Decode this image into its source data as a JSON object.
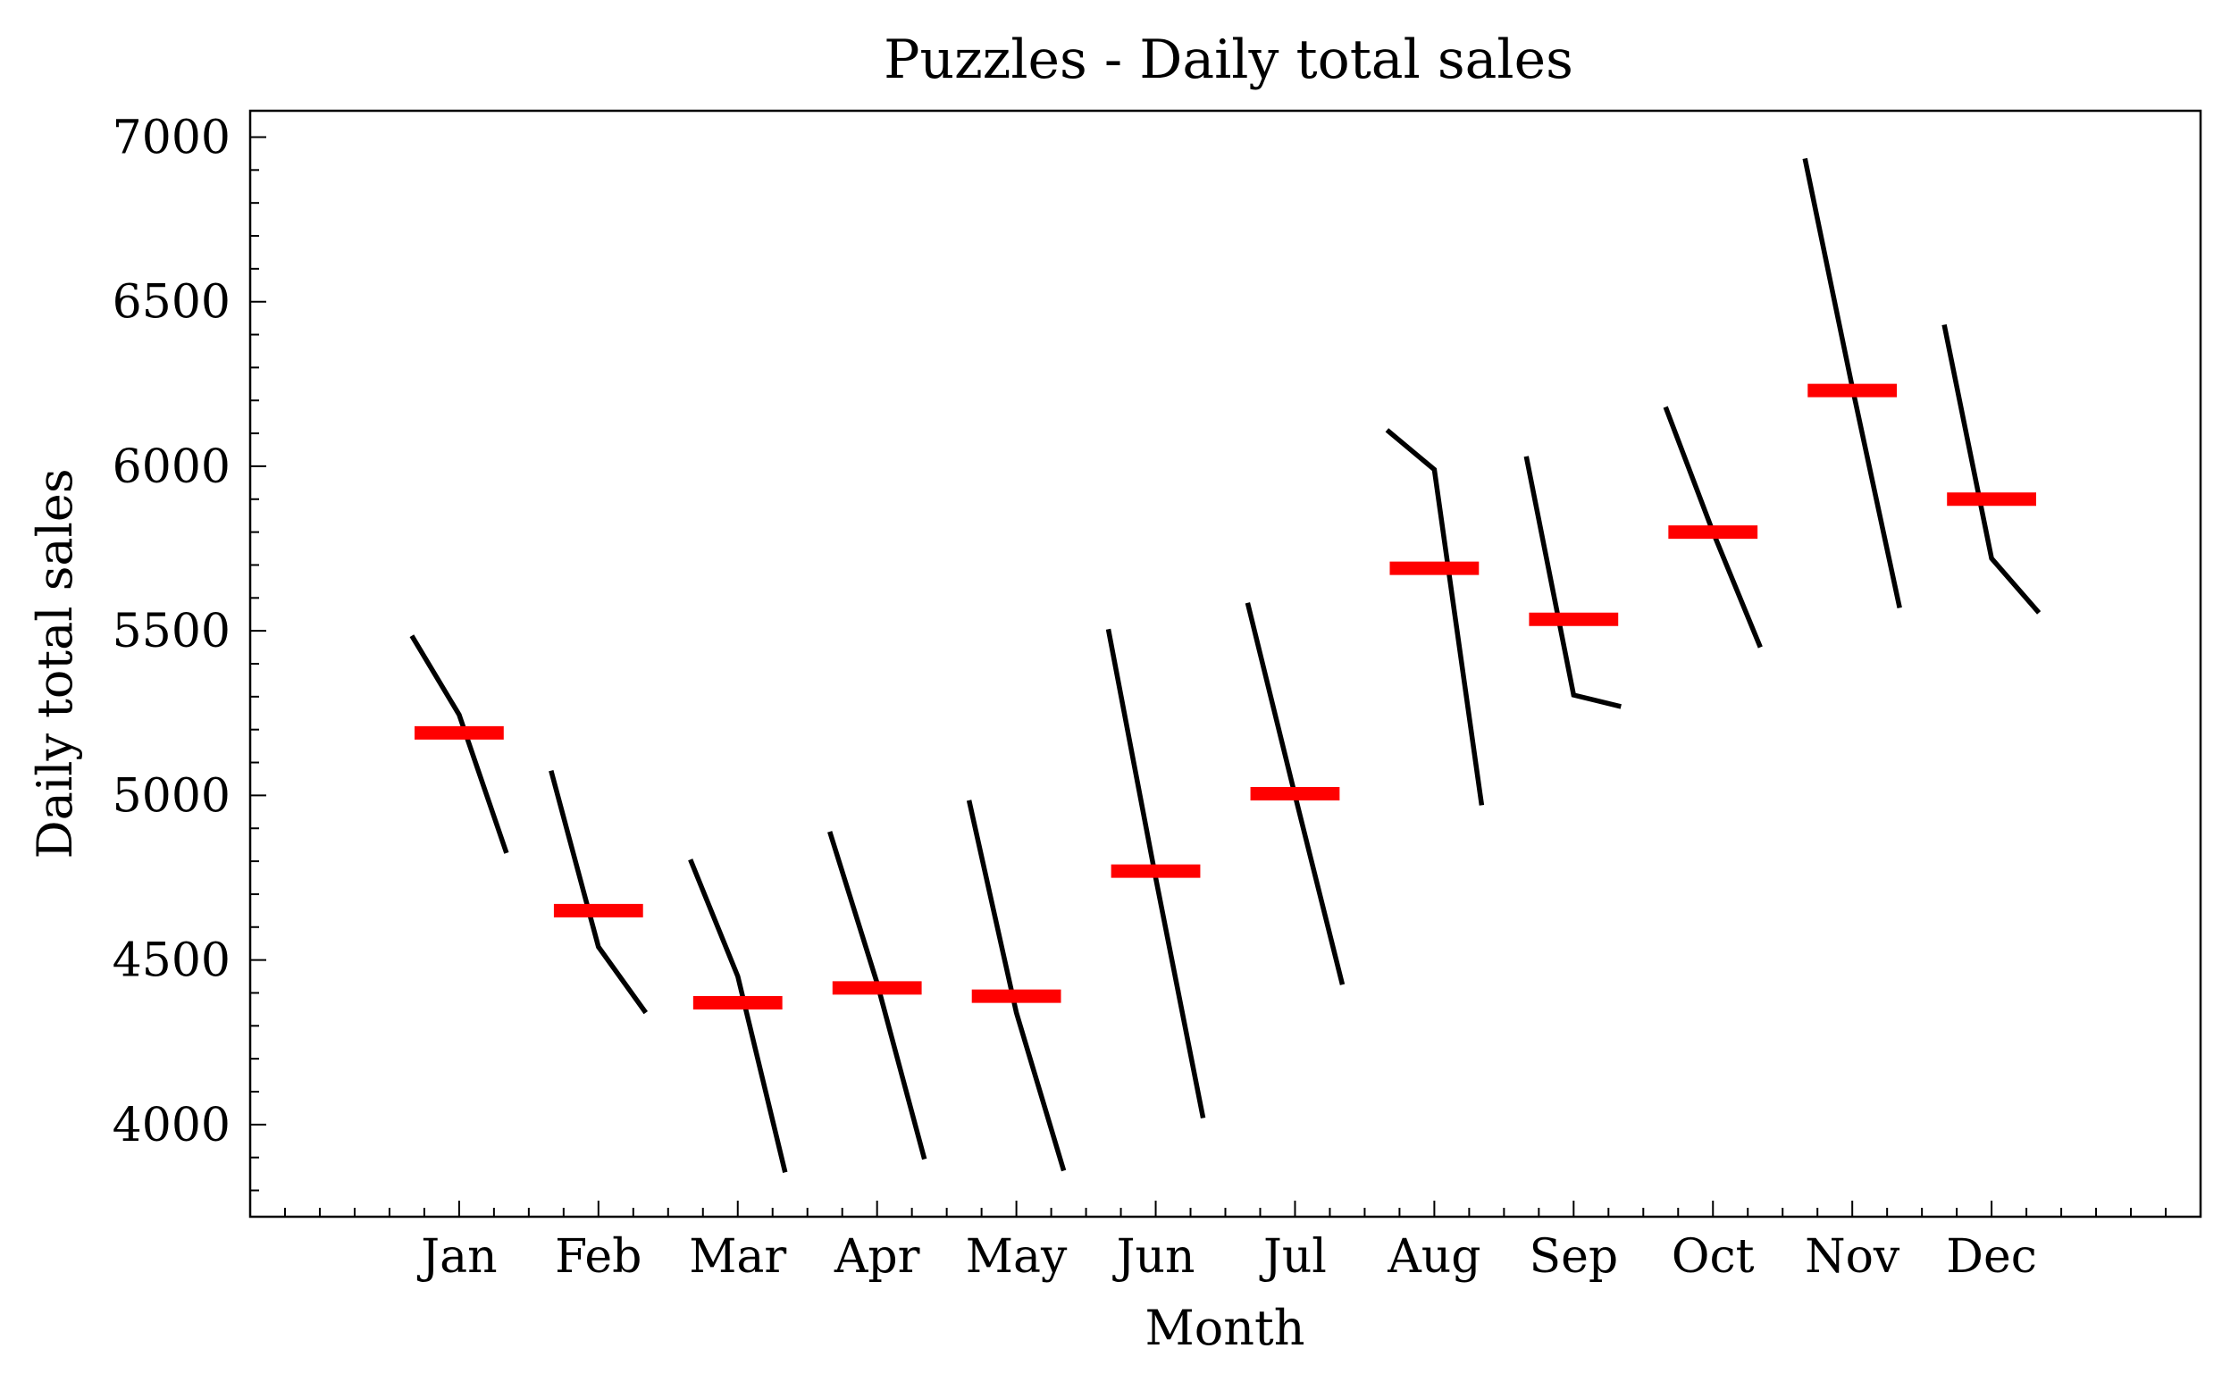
{
  "chart_data": {
    "type": "line",
    "title": "Puzzles - Daily total sales",
    "xlabel": "Month",
    "ylabel": "Daily total sales",
    "categories": [
      "Jan",
      "Feb",
      "Mar",
      "Apr",
      "May",
      "Jun",
      "Jul",
      "Aug",
      "Sep",
      "Oct",
      "Nov",
      "Dec"
    ],
    "ylim": [
      3720,
      7080
    ],
    "yticks": [
      4000,
      4500,
      5000,
      5500,
      6000,
      6500,
      7000
    ],
    "xlim": [
      -1.5,
      12.5
    ],
    "grid": false,
    "series": [
      {
        "values": [
          [
            5485,
            5245,
            4825
          ],
          [
            5075,
            4540,
            4340
          ],
          [
            4805,
            4450,
            3855
          ],
          [
            4890,
            4430,
            3895
          ],
          [
            4985,
            4340,
            3860
          ],
          [
            5505,
            4750,
            4020
          ],
          [
            5585,
            5000,
            4425
          ],
          [
            6110,
            5990,
            4970
          ],
          [
            6030,
            5305,
            5270
          ],
          [
            6180,
            5800,
            5450
          ],
          [
            6935,
            6240,
            5570
          ],
          [
            6430,
            5720,
            5555
          ]
        ]
      }
    ],
    "means": [
      5190,
      4650,
      4370,
      4415,
      4390,
      4770,
      5005,
      5690,
      5535,
      5800,
      6230,
      5900
    ],
    "colors": {
      "line": "#000000",
      "mean": "#ff0000"
    }
  }
}
